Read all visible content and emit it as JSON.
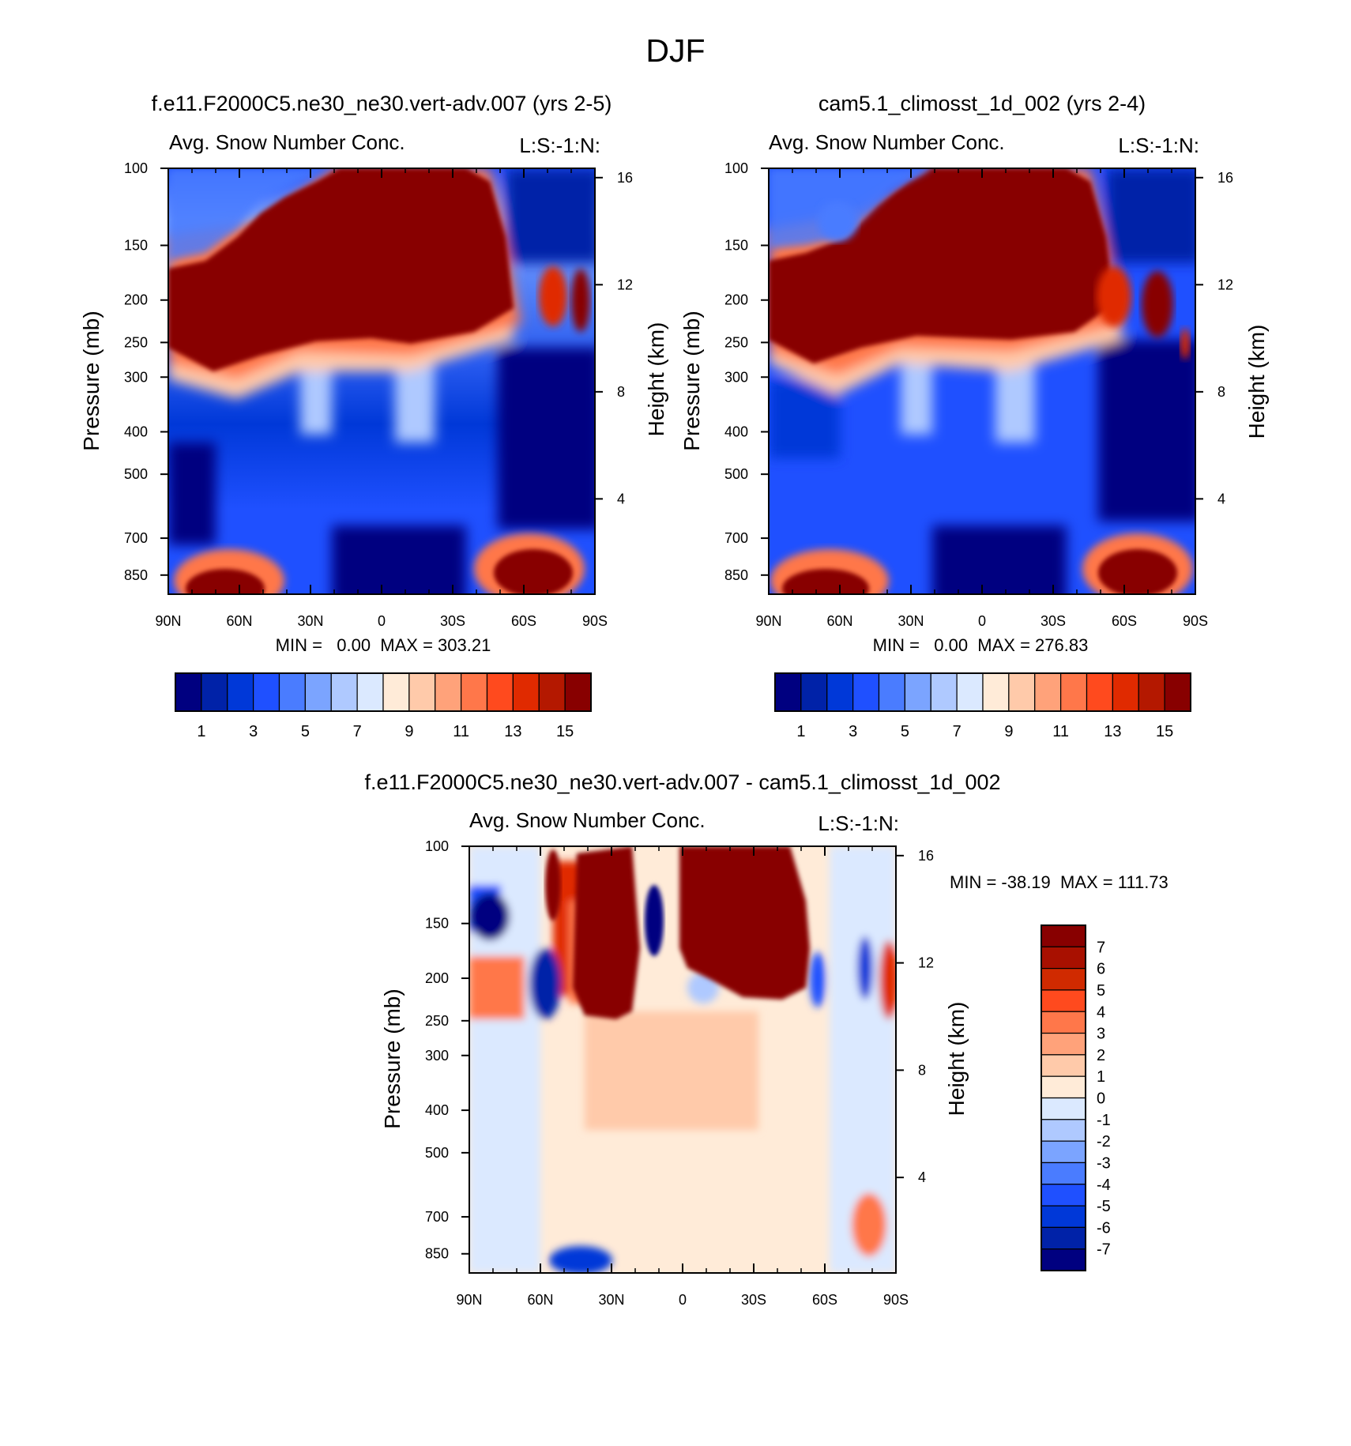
{
  "figure": {
    "title": "DJF"
  },
  "chart_data": [
    {
      "type": "heatmap",
      "id": "panel1",
      "title": "f.e11.F2000C5.ne30_ne30.vert-adv.007 (yrs 2-5)",
      "variable": "Avg. Snow Number Conc.",
      "units_label": "L:S:-1:N:",
      "xlabel": "",
      "ylabel": "Pressure (mb)",
      "y2label": "Height (km)",
      "x_ticks": [
        "90N",
        "60N",
        "30N",
        "0",
        "30S",
        "60S",
        "90S"
      ],
      "y_ticks": [
        "100",
        "150",
        "200",
        "250",
        "300",
        "400",
        "500",
        "700",
        "850"
      ],
      "y2_ticks": [
        "16",
        "12",
        "8",
        "4"
      ],
      "min_label": "MIN =   0.00  MAX = 303.21",
      "min": 0.0,
      "max": 303.21,
      "colorbar": {
        "orientation": "horizontal",
        "colors": [
          "#000080",
          "#0022a8",
          "#0038d8",
          "#1f50ff",
          "#4a7cff",
          "#7ba4ff",
          "#afc9ff",
          "#dbe9ff",
          "#ffebd8",
          "#ffcaaa",
          "#ffa27a",
          "#ff774a",
          "#ff4a1e",
          "#e02a00",
          "#b41800",
          "#880000"
        ],
        "labels": [
          "1",
          "3",
          "5",
          "7",
          "9",
          "11",
          "13",
          "15"
        ]
      }
    },
    {
      "type": "heatmap",
      "id": "panel2",
      "title": "cam5.1_climosst_1d_002 (yrs 2-4)",
      "variable": "Avg. Snow Number Conc.",
      "units_label": "L:S:-1:N:",
      "xlabel": "",
      "ylabel": "Pressure (mb)",
      "y2label": "Height (km)",
      "x_ticks": [
        "90N",
        "60N",
        "30N",
        "0",
        "30S",
        "60S",
        "90S"
      ],
      "y_ticks": [
        "100",
        "150",
        "200",
        "250",
        "300",
        "400",
        "500",
        "700",
        "850"
      ],
      "y2_ticks": [
        "16",
        "12",
        "8",
        "4"
      ],
      "min_label": "MIN =   0.00  MAX = 276.83",
      "min": 0.0,
      "max": 276.83,
      "colorbar": {
        "orientation": "horizontal",
        "colors": [
          "#000080",
          "#0022a8",
          "#0038d8",
          "#1f50ff",
          "#4a7cff",
          "#7ba4ff",
          "#afc9ff",
          "#dbe9ff",
          "#ffebd8",
          "#ffcaaa",
          "#ffa27a",
          "#ff774a",
          "#ff4a1e",
          "#e02a00",
          "#b41800",
          "#880000"
        ],
        "labels": [
          "1",
          "3",
          "5",
          "7",
          "9",
          "11",
          "13",
          "15"
        ]
      }
    },
    {
      "type": "heatmap",
      "id": "panel3",
      "title": "f.e11.F2000C5.ne30_ne30.vert-adv.007 - cam5.1_climosst_1d_002",
      "variable": "Avg. Snow Number Conc.",
      "units_label": "L:S:-1:N:",
      "xlabel": "",
      "ylabel": "Pressure (mb)",
      "y2label": "Height (km)",
      "x_ticks": [
        "90N",
        "60N",
        "30N",
        "0",
        "30S",
        "60S",
        "90S"
      ],
      "y_ticks": [
        "100",
        "150",
        "200",
        "250",
        "300",
        "400",
        "500",
        "700",
        "850"
      ],
      "y2_ticks": [
        "16",
        "12",
        "8",
        "4"
      ],
      "min_label": "MIN = -38.19  MAX = 111.73",
      "min": -38.19,
      "max": 111.73,
      "colorbar": {
        "orientation": "vertical",
        "colors": [
          "#880000",
          "#a81000",
          "#d02a00",
          "#ff4a1e",
          "#ff774a",
          "#ffa27a",
          "#ffcaaa",
          "#ffebd8",
          "#dbe9ff",
          "#afc9ff",
          "#7ba4ff",
          "#4a7cff",
          "#1f50ff",
          "#0038d8",
          "#0022a8",
          "#000080"
        ],
        "labels": [
          "7",
          "6",
          "5",
          "4",
          "3",
          "2",
          "1",
          "0",
          "-1",
          "-2",
          "-3",
          "-4",
          "-5",
          "-6",
          "-7"
        ]
      }
    }
  ]
}
